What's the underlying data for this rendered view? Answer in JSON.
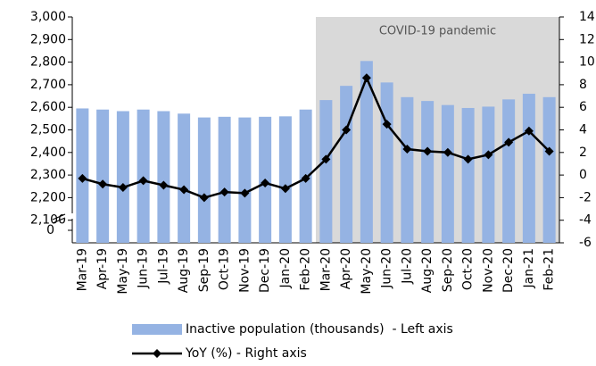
{
  "chart_data": {
    "type": "bar-line",
    "annotation": "COVID-19 pandemic",
    "shaded_range": [
      "Mar-20",
      "Feb-21"
    ],
    "categories": [
      "Mar-19",
      "Apr-19",
      "May-19",
      "Jun-19",
      "Jul-19",
      "Aug-19",
      "Sep-19",
      "Oct-19",
      "Nov-19",
      "Dec-19",
      "Jan-20",
      "Feb-20",
      "Mar-20",
      "Apr-20",
      "May-20",
      "Jun-20",
      "Jul-20",
      "Aug-20",
      "Sep-20",
      "Oct-20",
      "Nov-20",
      "Dec-20",
      "Jan-21",
      "Feb-21"
    ],
    "series": [
      {
        "name": "Inactive population (thousands)  - Left axis",
        "type": "bar",
        "color": "#95b3e3",
        "values": [
          2595,
          2590,
          2583,
          2590,
          2583,
          2572,
          2555,
          2558,
          2555,
          2558,
          2560,
          2590,
          2632,
          2695,
          2805,
          2710,
          2645,
          2628,
          2610,
          2597,
          2603,
          2635,
          2660,
          2645
        ]
      },
      {
        "name": "YoY (%) - Right axis",
        "type": "line",
        "axis": "y2",
        "color": "#000000",
        "values": [
          -0.3,
          -0.8,
          -1.1,
          -0.5,
          -0.9,
          -1.3,
          -2.0,
          -1.5,
          -1.6,
          -0.7,
          -1.2,
          -0.3,
          1.4,
          4.0,
          8.6,
          4.5,
          2.3,
          2.1,
          2.0,
          1.4,
          1.8,
          2.9,
          3.9,
          2.1
        ]
      }
    ],
    "ylim": [
      2000,
      3000
    ],
    "yticks": [
      {
        "value": 0,
        "label": "0"
      },
      {
        "value": 2100,
        "label": "2,100"
      },
      {
        "value": 2200,
        "label": "2,200"
      },
      {
        "value": 2300,
        "label": "2,300"
      },
      {
        "value": 2400,
        "label": "2,400"
      },
      {
        "value": 2500,
        "label": "2,500"
      },
      {
        "value": 2600,
        "label": "2,600"
      },
      {
        "value": 2700,
        "label": "2,700"
      },
      {
        "value": 2800,
        "label": "2,800"
      },
      {
        "value": 2900,
        "label": "2,900"
      },
      {
        "value": 3000,
        "label": "3,000"
      }
    ],
    "y2lim": [
      -6,
      14
    ],
    "y2ticks": [
      -6,
      -4,
      -2,
      0,
      2,
      4,
      6,
      8,
      10,
      12,
      14
    ],
    "axis_break": true
  }
}
